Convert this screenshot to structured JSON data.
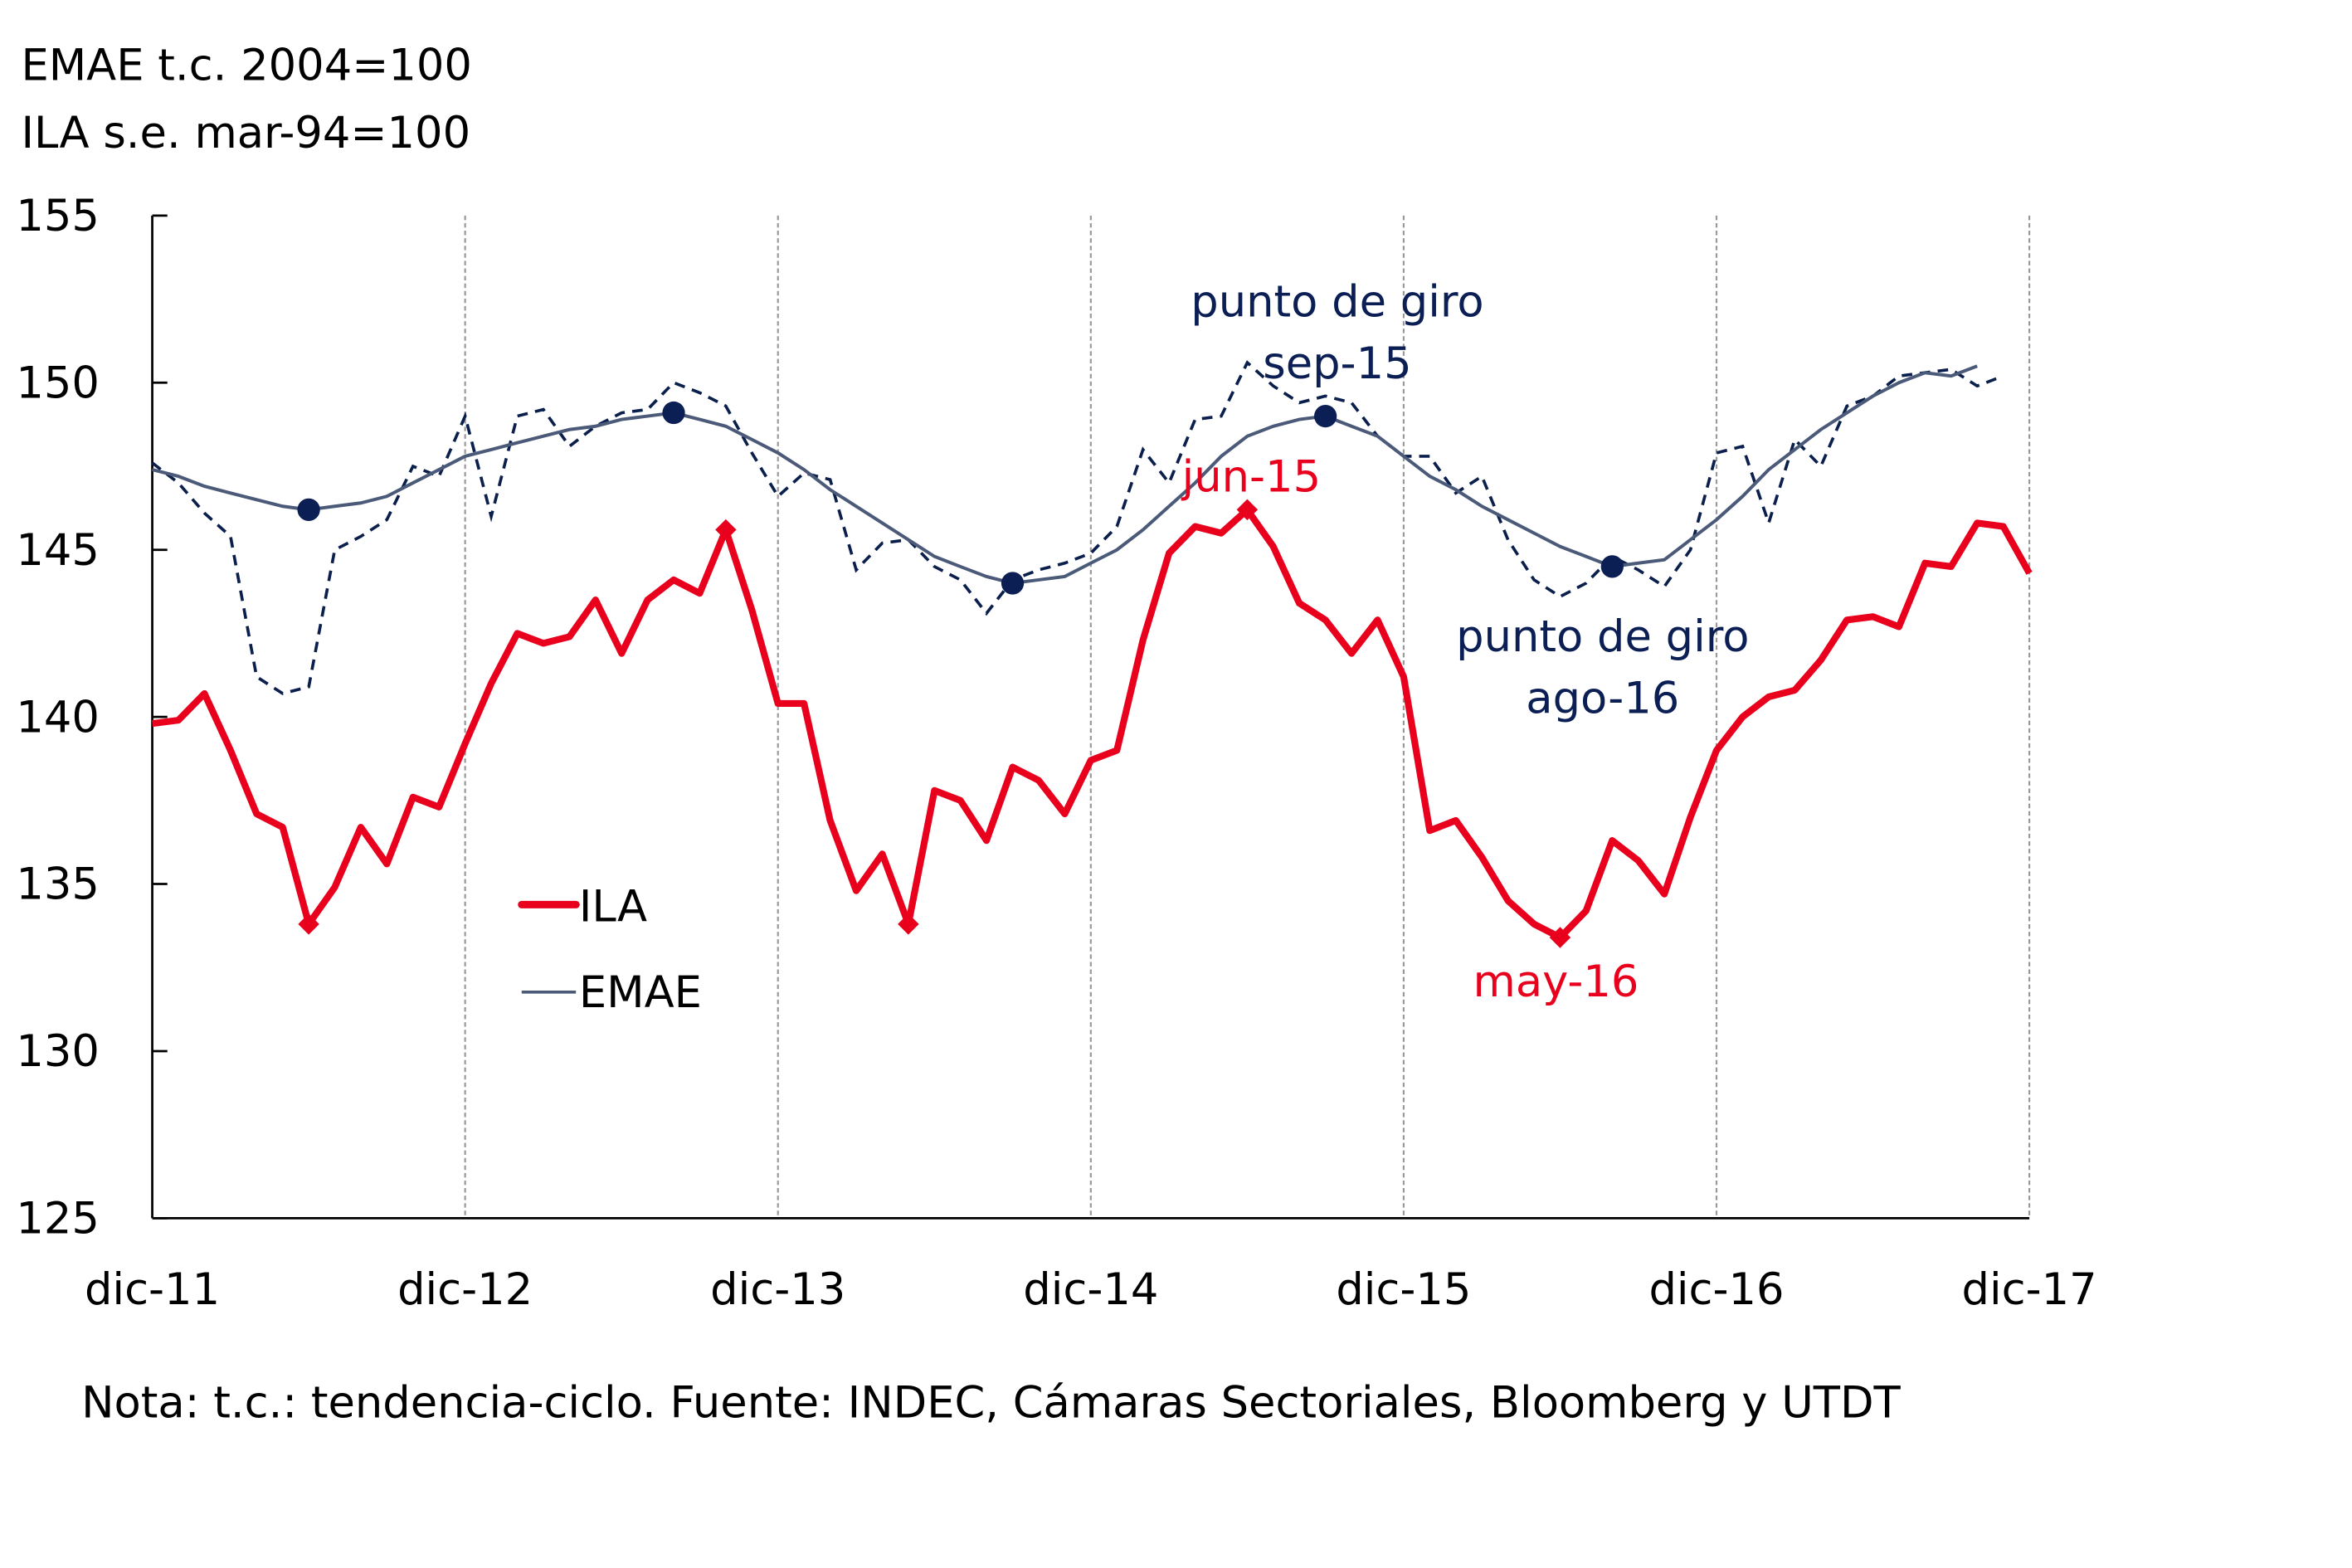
{
  "chart_data": {
    "type": "line",
    "title_lines": [
      "EMAE t.c. 2004=100",
      "ILA s.e. mar-94=100"
    ],
    "note": "Nota: t.c.: tendencia-ciclo.  Fuente: INDEC, Cámaras Sectoriales, Bloomberg y UTDT",
    "ylim": [
      125,
      155
    ],
    "yticks": [
      125,
      130,
      135,
      140,
      145,
      150,
      155
    ],
    "xticks": [
      "dic-11",
      "dic-12",
      "dic-13",
      "dic-14",
      "dic-15",
      "dic-16",
      "dic-17"
    ],
    "x_unit": "monthly, dic-11 to dic-17",
    "grid": "vertical dashed at each December",
    "legend": {
      "placement": "center-left",
      "entries": [
        "ILA",
        "EMAE"
      ]
    },
    "colors": {
      "ila": "#E8001C",
      "emae_trend": "#4B5A78",
      "emae_raw": "#0B1F4D",
      "annotation_navy": "#0B1F55",
      "grid": "#999999"
    },
    "series": [
      {
        "name": "ILA",
        "style": "thick solid red",
        "values": [
          139.8,
          139.9,
          140.7,
          139.0,
          137.1,
          136.7,
          133.8,
          134.9,
          136.7,
          135.6,
          137.6,
          137.3,
          139.2,
          141.0,
          142.5,
          142.2,
          142.4,
          143.5,
          141.9,
          143.5,
          144.1,
          143.7,
          145.6,
          143.2,
          140.4,
          140.4,
          136.9,
          134.8,
          135.9,
          133.8,
          137.8,
          137.5,
          136.3,
          138.5,
          138.1,
          137.1,
          138.7,
          139.0,
          142.3,
          144.9,
          145.7,
          145.5,
          146.2,
          145.1,
          143.4,
          142.9,
          141.9,
          142.9,
          141.2,
          136.6,
          136.9,
          135.8,
          134.5,
          133.8,
          133.4,
          134.2,
          136.3,
          135.7,
          134.7,
          137.0,
          139.0,
          140.0,
          140.6,
          140.8,
          141.7,
          142.9,
          143.0,
          142.7,
          144.6,
          144.5,
          145.8,
          145.7,
          144.3
        ],
        "markers_at_index": [
          6,
          22,
          29,
          42,
          54
        ]
      },
      {
        "name": "EMAE",
        "style": "thin solid slate (t.c.)",
        "values": [
          147.4,
          147.2,
          146.9,
          146.7,
          146.5,
          146.3,
          146.2,
          146.3,
          146.4,
          146.6,
          147.0,
          147.4,
          147.8,
          148.0,
          148.2,
          148.4,
          148.6,
          148.7,
          148.9,
          149.0,
          149.1,
          148.9,
          148.7,
          148.3,
          147.9,
          147.4,
          146.8,
          146.3,
          145.8,
          145.3,
          144.8,
          144.5,
          144.2,
          144.0,
          144.1,
          144.2,
          144.6,
          145.0,
          145.6,
          146.3,
          147.0,
          147.8,
          148.4,
          148.7,
          148.9,
          149.0,
          148.7,
          148.4,
          147.8,
          147.2,
          146.8,
          146.3,
          145.9,
          145.5,
          145.1,
          144.8,
          144.5,
          144.6,
          144.7,
          145.3,
          145.9,
          146.6,
          147.4,
          148.0,
          148.6,
          149.1,
          149.6,
          150.0,
          150.3,
          150.2,
          150.5
        ],
        "markers_at_index": [
          6,
          20,
          33,
          45,
          56
        ]
      },
      {
        "style": "dashed navy (EMAE original)",
        "values": [
          147.6,
          147.0,
          146.1,
          145.4,
          141.2,
          140.7,
          140.9,
          145.0,
          145.4,
          145.9,
          147.5,
          147.2,
          149.0,
          146.0,
          149.0,
          149.2,
          148.1,
          148.7,
          149.1,
          149.2,
          150.0,
          149.7,
          149.3,
          147.9,
          146.6,
          147.3,
          147.1,
          144.4,
          145.2,
          145.3,
          144.5,
          144.1,
          143.1,
          144.1,
          144.4,
          144.6,
          144.9,
          145.7,
          148.0,
          147.0,
          148.9,
          149.0,
          150.6,
          149.9,
          149.4,
          149.6,
          149.4,
          148.4,
          147.8,
          147.8,
          146.7,
          147.2,
          145.3,
          144.1,
          143.6,
          144.0,
          144.8,
          144.4,
          143.9,
          145.0,
          147.9,
          148.1,
          145.8,
          148.3,
          147.5,
          149.3,
          149.6,
          150.2,
          150.3,
          150.4,
          149.9,
          150.2
        ]
      }
    ],
    "annotations": [
      {
        "lines": [
          "punto de giro",
          "sep-15"
        ],
        "color": "#0B1F55"
      },
      {
        "lines": [
          "jun-15"
        ],
        "color": "#E8001C"
      },
      {
        "lines": [
          "punto de giro",
          "ago-16"
        ],
        "color": "#0B1F55"
      },
      {
        "lines": [
          "may-16"
        ],
        "color": "#E8001C"
      }
    ]
  }
}
